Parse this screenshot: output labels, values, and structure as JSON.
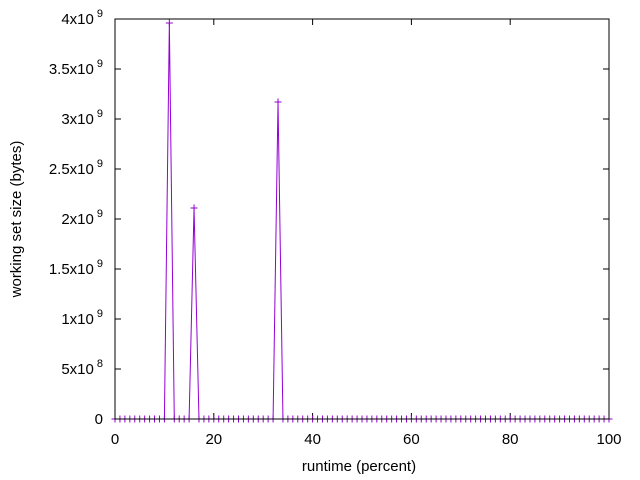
{
  "chart_data": {
    "type": "line",
    "xlabel": "runtime (percent)",
    "ylabel": "working set size (bytes)",
    "xlim": [
      0,
      100
    ],
    "ylim": [
      0,
      4000000000
    ],
    "x_ticks": [
      {
        "value": 0,
        "label": "0"
      },
      {
        "value": 20,
        "label": "20"
      },
      {
        "value": 40,
        "label": "40"
      },
      {
        "value": 60,
        "label": "60"
      },
      {
        "value": 80,
        "label": "80"
      },
      {
        "value": 100,
        "label": "100"
      }
    ],
    "y_ticks": [
      {
        "value": 0,
        "mantissa": "0",
        "exponent": ""
      },
      {
        "value": 500000000,
        "mantissa": "5x10",
        "exponent": "8"
      },
      {
        "value": 1000000000,
        "mantissa": "1x10",
        "exponent": "9"
      },
      {
        "value": 1500000000,
        "mantissa": "1.5x10",
        "exponent": "9"
      },
      {
        "value": 2000000000,
        "mantissa": "2x10",
        "exponent": "9"
      },
      {
        "value": 2500000000,
        "mantissa": "2.5x10",
        "exponent": "9"
      },
      {
        "value": 3000000000,
        "mantissa": "3x10",
        "exponent": "9"
      },
      {
        "value": 3500000000,
        "mantissa": "3.5x10",
        "exponent": "9"
      },
      {
        "value": 4000000000,
        "mantissa": "4x10",
        "exponent": "9"
      }
    ],
    "grid": false,
    "series_color": "#9400d3",
    "point_marker": "plus",
    "series": [
      {
        "points": [
          {
            "x": 0,
            "y": 0
          },
          {
            "x": 1,
            "y": 0
          },
          {
            "x": 2,
            "y": 0
          },
          {
            "x": 3,
            "y": 0
          },
          {
            "x": 4,
            "y": 0
          },
          {
            "x": 5,
            "y": 0
          },
          {
            "x": 6,
            "y": 0
          },
          {
            "x": 7,
            "y": 0
          },
          {
            "x": 8,
            "y": 0
          },
          {
            "x": 9,
            "y": 0
          },
          {
            "x": 10,
            "y": 0
          },
          {
            "x": 11,
            "y": 3960000000
          },
          {
            "x": 12,
            "y": 0
          },
          {
            "x": 13,
            "y": 0
          },
          {
            "x": 14,
            "y": 0
          },
          {
            "x": 15,
            "y": 0
          },
          {
            "x": 16,
            "y": 2110000000
          },
          {
            "x": 17,
            "y": 0
          },
          {
            "x": 18,
            "y": 0
          },
          {
            "x": 19,
            "y": 0
          },
          {
            "x": 20,
            "y": 0
          },
          {
            "x": 21,
            "y": 0
          },
          {
            "x": 22,
            "y": 0
          },
          {
            "x": 23,
            "y": 0
          },
          {
            "x": 24,
            "y": 0
          },
          {
            "x": 25,
            "y": 0
          },
          {
            "x": 26,
            "y": 0
          },
          {
            "x": 27,
            "y": 0
          },
          {
            "x": 28,
            "y": 0
          },
          {
            "x": 29,
            "y": 0
          },
          {
            "x": 30,
            "y": 0
          },
          {
            "x": 31,
            "y": 0
          },
          {
            "x": 32,
            "y": 0
          },
          {
            "x": 33,
            "y": 3170000000
          },
          {
            "x": 34,
            "y": 0
          },
          {
            "x": 35,
            "y": 0
          },
          {
            "x": 36,
            "y": 0
          },
          {
            "x": 37,
            "y": 0
          },
          {
            "x": 38,
            "y": 0
          },
          {
            "x": 39,
            "y": 0
          },
          {
            "x": 40,
            "y": 0
          },
          {
            "x": 41,
            "y": 0
          },
          {
            "x": 42,
            "y": 0
          },
          {
            "x": 43,
            "y": 0
          },
          {
            "x": 44,
            "y": 0
          },
          {
            "x": 45,
            "y": 0
          },
          {
            "x": 46,
            "y": 0
          },
          {
            "x": 47,
            "y": 0
          },
          {
            "x": 48,
            "y": 0
          },
          {
            "x": 49,
            "y": 0
          },
          {
            "x": 50,
            "y": 0
          },
          {
            "x": 51,
            "y": 0
          },
          {
            "x": 52,
            "y": 0
          },
          {
            "x": 53,
            "y": 0
          },
          {
            "x": 54,
            "y": 0
          },
          {
            "x": 55,
            "y": 0
          },
          {
            "x": 56,
            "y": 0
          },
          {
            "x": 57,
            "y": 0
          },
          {
            "x": 58,
            "y": 0
          },
          {
            "x": 59,
            "y": 0
          },
          {
            "x": 60,
            "y": 0
          },
          {
            "x": 61,
            "y": 0
          },
          {
            "x": 62,
            "y": 0
          },
          {
            "x": 63,
            "y": 0
          },
          {
            "x": 64,
            "y": 0
          },
          {
            "x": 65,
            "y": 0
          },
          {
            "x": 66,
            "y": 0
          },
          {
            "x": 67,
            "y": 0
          },
          {
            "x": 68,
            "y": 0
          },
          {
            "x": 69,
            "y": 0
          },
          {
            "x": 70,
            "y": 0
          },
          {
            "x": 71,
            "y": 0
          },
          {
            "x": 72,
            "y": 0
          },
          {
            "x": 73,
            "y": 0
          },
          {
            "x": 74,
            "y": 0
          },
          {
            "x": 75,
            "y": 0
          },
          {
            "x": 76,
            "y": 0
          },
          {
            "x": 77,
            "y": 0
          },
          {
            "x": 78,
            "y": 0
          },
          {
            "x": 79,
            "y": 0
          },
          {
            "x": 80,
            "y": 0
          },
          {
            "x": 81,
            "y": 0
          },
          {
            "x": 82,
            "y": 0
          },
          {
            "x": 83,
            "y": 0
          },
          {
            "x": 84,
            "y": 0
          },
          {
            "x": 85,
            "y": 0
          },
          {
            "x": 86,
            "y": 0
          },
          {
            "x": 87,
            "y": 0
          },
          {
            "x": 88,
            "y": 0
          },
          {
            "x": 89,
            "y": 0
          },
          {
            "x": 90,
            "y": 0
          },
          {
            "x": 91,
            "y": 0
          },
          {
            "x": 92,
            "y": 0
          },
          {
            "x": 93,
            "y": 0
          },
          {
            "x": 94,
            "y": 0
          },
          {
            "x": 95,
            "y": 0
          },
          {
            "x": 96,
            "y": 0
          },
          {
            "x": 97,
            "y": 0
          },
          {
            "x": 98,
            "y": 0
          },
          {
            "x": 99,
            "y": 0
          },
          {
            "x": 100,
            "y": 0
          }
        ]
      }
    ]
  }
}
